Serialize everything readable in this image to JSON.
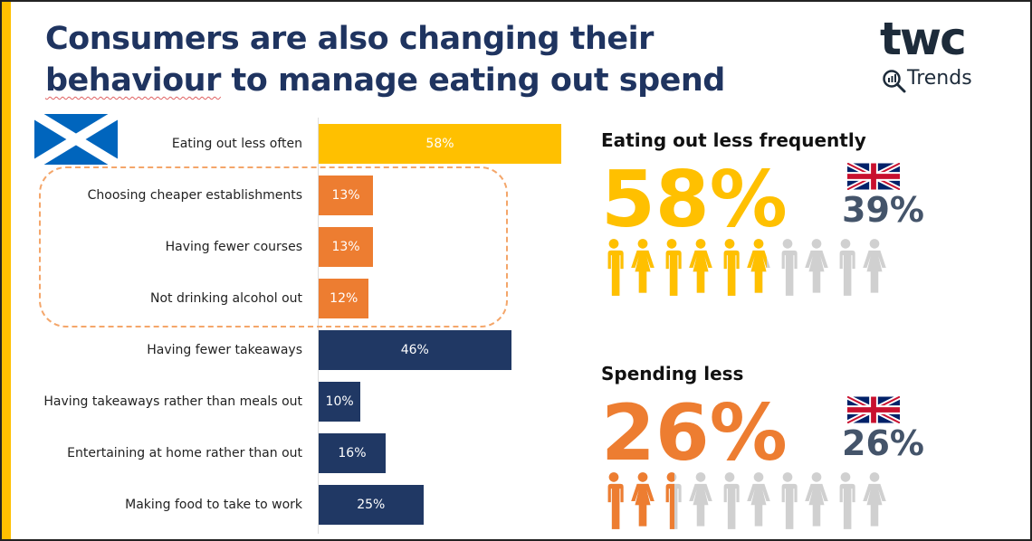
{
  "title": {
    "line1": "Consumers are also changing their",
    "line2_underlined": "behaviour",
    "line2_rest": " to manage eating out spend"
  },
  "logo": {
    "brand": "twc",
    "sub": "Trends"
  },
  "colors": {
    "yellow": "#FFC000",
    "orange": "#ED7D31",
    "navy": "#203864",
    "grey": "#D0D0D0",
    "uk_text": "#44546A"
  },
  "chart_data": {
    "type": "bar",
    "orientation": "horizontal",
    "region": "Scotland",
    "categories": [
      "Eating out less often",
      "Choosing cheaper establishments",
      "Having fewer courses",
      "Not drinking alcohol out",
      "Having fewer takeaways",
      "Having takeaways rather than meals out",
      "Entertaining at home rather than out",
      "Making food to take to work"
    ],
    "values": [
      58,
      13,
      13,
      12,
      46,
      10,
      16,
      25
    ],
    "value_labels": [
      "58%",
      "13%",
      "13%",
      "12%",
      "46%",
      "10%",
      "16%",
      "25%"
    ],
    "bar_colors": [
      "#FFC000",
      "#ED7D31",
      "#ED7D31",
      "#ED7D31",
      "#203864",
      "#203864",
      "#203864",
      "#203864"
    ],
    "xlim": [
      0,
      100
    ],
    "highlighted_group": [
      "Choosing cheaper establishments",
      "Having fewer courses",
      "Not drinking alcohol out"
    ]
  },
  "stats": [
    {
      "heading": "Eating out less frequently",
      "scotland": "58%",
      "scotland_value": 58,
      "uk": "39%",
      "color": "#FFC000"
    },
    {
      "heading": "Spending less",
      "scotland": "26%",
      "scotland_value": 26,
      "uk": "26%",
      "color": "#ED7D31"
    }
  ]
}
